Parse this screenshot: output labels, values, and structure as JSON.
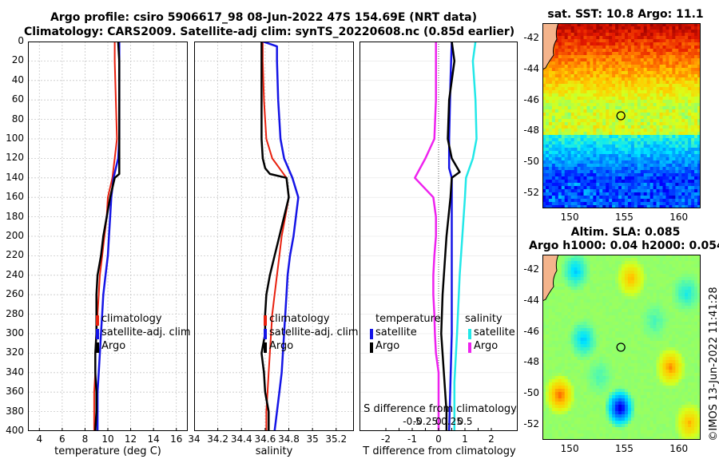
{
  "figure": {
    "title_line1": "Argo profile: csiro 5906617_98 08-Jun-2022 47S 154.69E (NRT data)",
    "title_line2": "Climatology: CARS2009. Satellite-adj clim: synTS_20220608.nc (0.85d earlier)",
    "credit": "©IMOS 13-Jun-2022 11:41:28",
    "colors": {
      "climatology": "#e8200e",
      "satellite": "#1414e6",
      "argo": "#000000",
      "sat_salinity": "#22e8e8",
      "argo_salinity": "#ee22ee"
    }
  },
  "chart_data": [
    {
      "type": "line",
      "name": "temperature-profile",
      "xlabel": "temperature (deg C)",
      "ylabel": "",
      "xlim": [
        3,
        17
      ],
      "ylim": [
        400,
        0
      ],
      "xticks": [
        "4",
        "6",
        "8",
        "10",
        "12",
        "14",
        "16"
      ],
      "yticks": [
        "0",
        "20",
        "40",
        "60",
        "80",
        "100",
        "120",
        "140",
        "160",
        "180",
        "200",
        "220",
        "240",
        "260",
        "280",
        "300",
        "320",
        "340",
        "360",
        "380",
        "400"
      ],
      "grid": true,
      "legend": [
        "climatology",
        "satellite-adj. clim",
        "Argo"
      ],
      "series": [
        {
          "name": "climatology",
          "depth": [
            0,
            20,
            60,
            100,
            120,
            140,
            160,
            180,
            200,
            220,
            240,
            260,
            280,
            300,
            320,
            340,
            360,
            380,
            400
          ],
          "values": [
            10.6,
            10.6,
            10.7,
            10.8,
            10.6,
            10.4,
            10.0,
            9.9,
            9.7,
            9.5,
            9.3,
            9.2,
            9.1,
            9.0,
            8.9,
            8.9,
            8.8,
            8.8,
            8.8
          ]
        },
        {
          "name": "satellite-adj. clim",
          "depth": [
            0,
            20,
            60,
            100,
            120,
            140,
            160,
            180,
            200,
            220,
            240,
            260,
            280,
            300,
            320,
            340,
            360,
            380,
            400
          ],
          "values": [
            11.0,
            11.0,
            11.0,
            11.0,
            10.9,
            10.5,
            10.3,
            10.2,
            10.1,
            10.0,
            9.8,
            9.6,
            9.5,
            9.4,
            9.3,
            9.2,
            9.1,
            9.1,
            9.1
          ]
        },
        {
          "name": "Argo",
          "depth": [
            0,
            20,
            60,
            100,
            120,
            136,
            140,
            160,
            180,
            200,
            220,
            240,
            260,
            280,
            300,
            320,
            340,
            360,
            380,
            400
          ],
          "values": [
            10.9,
            11.0,
            11.0,
            11.0,
            11.0,
            11.0,
            10.6,
            10.2,
            9.9,
            9.6,
            9.4,
            9.1,
            9.0,
            9.0,
            9.0,
            8.9,
            8.9,
            9.0,
            9.0,
            8.9
          ]
        }
      ]
    },
    {
      "type": "line",
      "name": "salinity-profile",
      "xlabel": "salinity",
      "ylabel": "",
      "xlim": [
        34.0,
        35.35
      ],
      "ylim": [
        400,
        0
      ],
      "xticks": [
        "34",
        "34.2",
        "34.4",
        "34.6",
        "34.8",
        "35",
        "35.2"
      ],
      "grid": true,
      "legend": [
        "climatology",
        "satellite-adj. clim",
        "Argo"
      ],
      "series": [
        {
          "name": "climatology",
          "depth": [
            0,
            20,
            60,
            100,
            120,
            140,
            160,
            180,
            200,
            220,
            240,
            260,
            280,
            300,
            320,
            340,
            360,
            380,
            400
          ],
          "values": [
            34.58,
            34.58,
            34.59,
            34.61,
            34.66,
            34.78,
            34.8,
            34.77,
            34.74,
            34.72,
            34.7,
            34.68,
            34.66,
            34.65,
            34.64,
            34.63,
            34.62,
            34.61,
            34.61
          ]
        },
        {
          "name": "satellite-adj. clim",
          "depth": [
            0,
            5,
            20,
            60,
            100,
            120,
            140,
            160,
            180,
            200,
            220,
            240,
            260,
            280,
            300,
            320,
            340,
            360,
            380,
            400
          ],
          "values": [
            34.58,
            34.7,
            34.7,
            34.71,
            34.73,
            34.76,
            34.83,
            34.88,
            34.86,
            34.84,
            34.81,
            34.79,
            34.78,
            34.77,
            34.76,
            34.75,
            34.74,
            34.72,
            34.7,
            34.68
          ]
        },
        {
          "name": "Argo",
          "depth": [
            0,
            20,
            60,
            100,
            120,
            130,
            136,
            140,
            160,
            180,
            200,
            220,
            240,
            260,
            280,
            300,
            320,
            340,
            360,
            380,
            400
          ],
          "values": [
            34.57,
            34.57,
            34.57,
            34.57,
            34.58,
            34.6,
            34.64,
            34.78,
            34.8,
            34.76,
            34.72,
            34.68,
            34.64,
            34.61,
            34.6,
            34.6,
            34.57,
            34.59,
            34.6,
            34.63,
            34.63
          ]
        }
      ]
    },
    {
      "type": "line",
      "name": "difference-profile",
      "xlabel": "T difference from climatology",
      "xlabel_top": "S difference from climatology",
      "xlim": [
        -3,
        3
      ],
      "ylim": [
        400,
        0
      ],
      "xticks": [
        "-2",
        "-1.5",
        "-1",
        "-0.5",
        "0",
        "0.5",
        "1",
        "1.5",
        "2"
      ],
      "xticks_top": [
        "-0.5",
        "-0.25",
        "0",
        "0.25",
        "0.5"
      ],
      "legend_temperature_title": "temperature",
      "legend_salinity_title": "salinity",
      "legend": [
        "satellite",
        "Argo",
        "satellite",
        "Argo"
      ],
      "series": [
        {
          "name": "temperature satellite",
          "depth": [
            0,
            40,
            100,
            130,
            140,
            200,
            300,
            400
          ],
          "values": [
            0.5,
            0.45,
            0.4,
            0.4,
            0.5,
            0.5,
            0.5,
            0.4
          ]
        },
        {
          "name": "temperature Argo",
          "depth": [
            0,
            20,
            60,
            100,
            120,
            134,
            140,
            160,
            200,
            260,
            300,
            340,
            380,
            400
          ],
          "values": [
            0.5,
            0.6,
            0.4,
            0.35,
            0.5,
            0.8,
            0.5,
            0.45,
            0.3,
            0.15,
            0.1,
            0.2,
            0.3,
            0.3
          ]
        },
        {
          "name": "salinity satellite",
          "depth": [
            0,
            20,
            60,
            100,
            120,
            140,
            160,
            200,
            240,
            300,
            350,
            400
          ],
          "values": [
            0.7,
            0.65,
            0.7,
            0.72,
            0.65,
            0.52,
            0.5,
            0.45,
            0.4,
            0.35,
            0.3,
            0.3
          ]
        },
        {
          "name": "salinity Argo",
          "depth": [
            0,
            20,
            60,
            100,
            120,
            140,
            160,
            180,
            200,
            220,
            240,
            260,
            280,
            300,
            320,
            340,
            360,
            380,
            400
          ],
          "values": [
            -0.05,
            -0.05,
            -0.05,
            -0.08,
            -0.25,
            -0.45,
            -0.1,
            -0.05,
            -0.05,
            -0.08,
            -0.1,
            -0.1,
            -0.08,
            -0.07,
            -0.05,
            0.0,
            0.0,
            0.0,
            0.0
          ]
        }
      ]
    },
    {
      "type": "heatmap",
      "name": "sst-map",
      "title": "sat. SST: 10.8 Argo: 11.1",
      "xticks": [
        "150",
        "155",
        "160"
      ],
      "yticks": [
        "-42",
        "-44",
        "-46",
        "-48",
        "-50",
        "-52"
      ],
      "xlim": [
        147.5,
        162
      ],
      "ylim": [
        -53,
        -41
      ],
      "argo_marker": {
        "lon": 154.69,
        "lat": -47
      }
    },
    {
      "type": "heatmap",
      "name": "sla-map",
      "title_line1": "Altim. SLA: 0.085",
      "title_line2": "Argo h1000: 0.04 h2000: 0.054",
      "xticks": [
        "150",
        "155",
        "160"
      ],
      "yticks": [
        "-42",
        "-44",
        "-46",
        "-48",
        "-50",
        "-52"
      ],
      "xlim": [
        147.5,
        162
      ],
      "ylim": [
        -53,
        -41
      ],
      "argo_marker": {
        "lon": 154.69,
        "lat": -47
      }
    }
  ]
}
